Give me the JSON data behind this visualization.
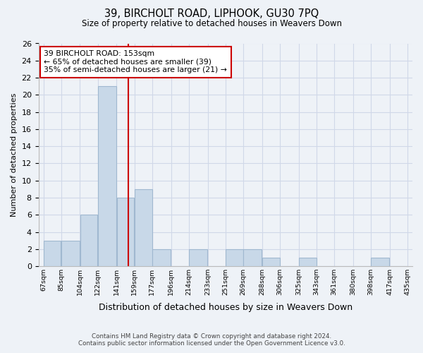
{
  "title": "39, BIRCHOLT ROAD, LIPHOOK, GU30 7PQ",
  "subtitle": "Size of property relative to detached houses in Weavers Down",
  "xlabel": "Distribution of detached houses by size in Weavers Down",
  "ylabel": "Number of detached properties",
  "bin_edges": [
    67,
    85,
    104,
    122,
    141,
    159,
    177,
    196,
    214,
    233,
    251,
    269,
    288,
    306,
    325,
    343,
    361,
    380,
    398,
    417,
    435
  ],
  "bin_labels": [
    "67sqm",
    "85sqm",
    "104sqm",
    "122sqm",
    "141sqm",
    "159sqm",
    "177sqm",
    "196sqm",
    "214sqm",
    "233sqm",
    "251sqm",
    "269sqm",
    "288sqm",
    "306sqm",
    "325sqm",
    "343sqm",
    "361sqm",
    "380sqm",
    "398sqm",
    "417sqm",
    "435sqm"
  ],
  "counts": [
    3,
    3,
    6,
    21,
    8,
    9,
    2,
    0,
    2,
    0,
    2,
    2,
    1,
    0,
    1,
    0,
    0,
    0,
    1,
    0
  ],
  "bar_color": "#c8d8e8",
  "bar_edge_color": "#a0b8d0",
  "property_line_x": 153,
  "property_line_color": "#cc0000",
  "annotation_title": "39 BIRCHOLT ROAD: 153sqm",
  "annotation_line1": "← 65% of detached houses are smaller (39)",
  "annotation_line2": "35% of semi-detached houses are larger (21) →",
  "annotation_box_color": "#ffffff",
  "annotation_box_edge": "#cc0000",
  "ylim": [
    0,
    26
  ],
  "yticks": [
    0,
    2,
    4,
    6,
    8,
    10,
    12,
    14,
    16,
    18,
    20,
    22,
    24,
    26
  ],
  "grid_color": "#d0d8e8",
  "background_color": "#eef2f7",
  "footer_line1": "Contains HM Land Registry data © Crown copyright and database right 2024.",
  "footer_line2": "Contains public sector information licensed under the Open Government Licence v3.0."
}
